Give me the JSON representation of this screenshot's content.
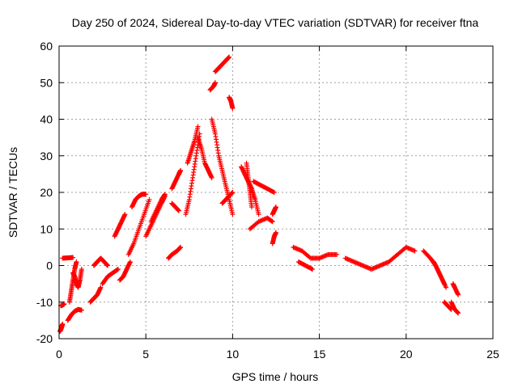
{
  "chart_data": {
    "type": "scatter",
    "title": "Day 250 of 2024, Sidereal Day-to-day VTEC variation (SDTVAR) for receiver ftna",
    "xlabel": "GPS time / hours",
    "ylabel": "SDTVAR / TECUs",
    "xlim": [
      0,
      25
    ],
    "ylim": [
      -20,
      60
    ],
    "xticks": [
      0,
      5,
      10,
      15,
      20,
      25
    ],
    "yticks": [
      -20,
      -10,
      0,
      10,
      20,
      30,
      40,
      50,
      60
    ],
    "grid": true,
    "marker": "+",
    "color": "#ff0000",
    "segments": [
      {
        "x": [
          0.05,
          0.1,
          0.15,
          0.2
        ],
        "y": [
          -18,
          -17.5,
          -16.8,
          -16
        ]
      },
      {
        "x": [
          0.1,
          0.2,
          0.3
        ],
        "y": [
          -11,
          -10.8,
          -10.5
        ]
      },
      {
        "x": [
          0.2,
          0.5,
          0.8
        ],
        "y": [
          2,
          2.1,
          2.2
        ]
      },
      {
        "x": [
          0.5,
          0.7,
          0.9,
          1.1,
          1.3
        ],
        "y": [
          -15,
          -13.5,
          -12.5,
          -12,
          -12.2
        ]
      },
      {
        "x": [
          0.6,
          0.7,
          0.8,
          0.9,
          1.0
        ],
        "y": [
          -10,
          -7,
          -4,
          -1,
          1
        ]
      },
      {
        "x": [
          0.8,
          0.9,
          1.0,
          1.1,
          1.2,
          1.3
        ],
        "y": [
          -2,
          -3,
          -5,
          -6,
          -4,
          -1
        ]
      },
      {
        "x": [
          1.8,
          2.0,
          2.2,
          2.4
        ],
        "y": [
          -10,
          -9,
          -8,
          -6
        ]
      },
      {
        "x": [
          2.0,
          2.2,
          2.4,
          2.6,
          2.8
        ],
        "y": [
          0,
          1,
          2,
          1,
          0
        ]
      },
      {
        "x": [
          2.5,
          2.8,
          3.1,
          3.4
        ],
        "y": [
          -5,
          -3,
          -2,
          -1
        ]
      },
      {
        "x": [
          3.2,
          3.4,
          3.6,
          3.8
        ],
        "y": [
          8,
          10,
          12,
          14
        ]
      },
      {
        "x": [
          3.5,
          3.7,
          3.9,
          4.1
        ],
        "y": [
          -4,
          -3,
          -1,
          1
        ]
      },
      {
        "x": [
          4.0,
          4.3,
          4.6,
          4.9,
          5.2
        ],
        "y": [
          3,
          6,
          10,
          14,
          18
        ]
      },
      {
        "x": [
          4.2,
          4.4,
          4.6,
          4.8,
          5.0
        ],
        "y": [
          16,
          18,
          19,
          19.5,
          19.5
        ]
      },
      {
        "x": [
          5.0,
          5.3,
          5.6,
          5.9,
          6.1
        ],
        "y": [
          8,
          11,
          14,
          17,
          19
        ]
      },
      {
        "x": [
          5.3,
          5.6,
          5.9,
          6.1
        ],
        "y": [
          12,
          15,
          18,
          19.5
        ]
      },
      {
        "x": [
          6.3,
          6.5,
          6.8,
          7.0
        ],
        "y": [
          2,
          3,
          4,
          5
        ]
      },
      {
        "x": [
          6.5,
          6.7,
          6.9,
          7.0
        ],
        "y": [
          21,
          23,
          25,
          26
        ]
      },
      {
        "x": [
          6.5,
          6.7,
          6.9
        ],
        "y": [
          17,
          16,
          15
        ]
      },
      {
        "x": [
          7.3,
          7.5,
          7.7,
          7.9,
          8.1
        ],
        "y": [
          14,
          18,
          24,
          30,
          36
        ]
      },
      {
        "x": [
          7.4,
          7.6,
          7.8,
          8.0
        ],
        "y": [
          28,
          31,
          34,
          38
        ]
      },
      {
        "x": [
          8.0,
          8.2,
          8.4,
          8.6,
          8.8
        ],
        "y": [
          35,
          32,
          28,
          26,
          24
        ]
      },
      {
        "x": [
          8.7,
          8.9,
          9.0
        ],
        "y": [
          48,
          49,
          50
        ]
      },
      {
        "x": [
          9.0,
          9.2,
          9.4,
          9.6,
          9.8
        ],
        "y": [
          53,
          54,
          55,
          56,
          57
        ]
      },
      {
        "x": [
          8.8,
          9.0,
          9.2,
          9.4,
          9.6,
          9.8,
          10.0
        ],
        "y": [
          40,
          36,
          30,
          26,
          22,
          18,
          14
        ]
      },
      {
        "x": [
          9.4,
          9.6,
          9.8,
          10.0
        ],
        "y": [
          17,
          18,
          19,
          20
        ]
      },
      {
        "x": [
          9.8,
          9.9,
          10.0
        ],
        "y": [
          46,
          45,
          43
        ]
      },
      {
        "x": [
          10.5,
          10.7,
          10.9,
          11.1,
          11.3,
          11.5
        ],
        "y": [
          27,
          25,
          23,
          21,
          18,
          14
        ]
      },
      {
        "x": [
          10.8,
          10.9,
          11.0,
          11.1
        ],
        "y": [
          28,
          24,
          20,
          16
        ]
      },
      {
        "x": [
          11.0,
          11.5,
          12.0,
          12.3
        ],
        "y": [
          10,
          12,
          13,
          12
        ]
      },
      {
        "x": [
          11.2,
          11.6,
          12.0,
          12.4
        ],
        "y": [
          23,
          22,
          21,
          20
        ]
      },
      {
        "x": [
          12.3,
          12.4,
          12.5
        ],
        "y": [
          14,
          15,
          16
        ]
      },
      {
        "x": [
          12.3,
          12.4,
          12.5
        ],
        "y": [
          6,
          8,
          9
        ]
      },
      {
        "x": [
          13.5,
          14.0,
          14.5,
          15.0,
          15.5,
          16.0
        ],
        "y": [
          5,
          4,
          2,
          2,
          3,
          3
        ]
      },
      {
        "x": [
          13.8,
          14.2,
          14.6
        ],
        "y": [
          1,
          0,
          -1
        ]
      },
      {
        "x": [
          16.5,
          17.0,
          17.5,
          18.0,
          18.5,
          19.0,
          19.5,
          20.0,
          20.5
        ],
        "y": [
          2,
          1,
          0,
          -1,
          0,
          1,
          3,
          5,
          4
        ]
      },
      {
        "x": [
          21.0,
          21.4,
          21.7,
          22.0,
          22.3
        ],
        "y": [
          4,
          2,
          0,
          -3,
          -6
        ]
      },
      {
        "x": [
          21.6,
          21.9,
          22.2
        ],
        "y": [
          1,
          -2,
          -5
        ]
      },
      {
        "x": [
          22.2,
          22.4,
          22.6
        ],
        "y": [
          -10,
          -11,
          -12
        ]
      },
      {
        "x": [
          22.7,
          22.8,
          23.0
        ],
        "y": [
          -5,
          -6,
          -8
        ]
      },
      {
        "x": [
          22.6,
          22.8,
          23.0
        ],
        "y": [
          -10,
          -12,
          -13
        ]
      }
    ]
  }
}
